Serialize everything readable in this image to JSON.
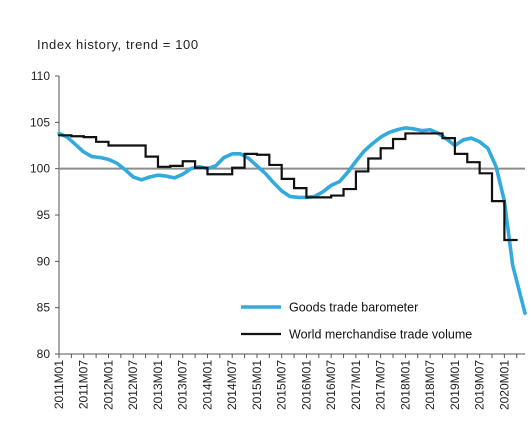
{
  "chart_data": {
    "type": "line",
    "title": "",
    "subtitle": "Index history, trend = 100",
    "xlabel": "",
    "ylabel": "",
    "ylim": [
      80,
      110
    ],
    "yticks": [
      80,
      85,
      90,
      95,
      100,
      105,
      110
    ],
    "reference_line": 100,
    "grid": false,
    "legend_position": "bottom-right",
    "x_start": "2011M01",
    "x_end": "2020M06",
    "x_tick_labels": [
      "2011M01",
      "2011M07",
      "2012M01",
      "2012M07",
      "2013M01",
      "2013M07",
      "2014M01",
      "2014M07",
      "2015M01",
      "2015M07",
      "2016M01",
      "2016M07",
      "2017M01",
      "2017M07",
      "2018M01",
      "2018M07",
      "2019M01",
      "2019M07",
      "2020M01"
    ],
    "series": [
      {
        "name": "Goods trade barometer",
        "color": "#33aadd",
        "style": "line",
        "points": [
          [
            "2011M01",
            103.8
          ],
          [
            "2011M03",
            103.4
          ],
          [
            "2011M05",
            102.6
          ],
          [
            "2011M07",
            101.8
          ],
          [
            "2011M09",
            101.3
          ],
          [
            "2011M11",
            101.2
          ],
          [
            "2012M01",
            101.0
          ],
          [
            "2012M03",
            100.6
          ],
          [
            "2012M05",
            99.9
          ],
          [
            "2012M07",
            99.1
          ],
          [
            "2012M09",
            98.8
          ],
          [
            "2012M11",
            99.1
          ],
          [
            "2013M01",
            99.3
          ],
          [
            "2013M03",
            99.2
          ],
          [
            "2013M05",
            99.0
          ],
          [
            "2013M07",
            99.4
          ],
          [
            "2013M09",
            100.0
          ],
          [
            "2013M11",
            100.2
          ],
          [
            "2014M01",
            100.0
          ],
          [
            "2014M03",
            100.3
          ],
          [
            "2014M05",
            101.2
          ],
          [
            "2014M07",
            101.6
          ],
          [
            "2014M09",
            101.6
          ],
          [
            "2014M11",
            101.1
          ],
          [
            "2015M01",
            100.3
          ],
          [
            "2015M03",
            99.5
          ],
          [
            "2015M05",
            98.5
          ],
          [
            "2015M07",
            97.6
          ],
          [
            "2015M09",
            97.0
          ],
          [
            "2015M11",
            96.9
          ],
          [
            "2016M01",
            96.9
          ],
          [
            "2016M03",
            97.0
          ],
          [
            "2016M05",
            97.5
          ],
          [
            "2016M07",
            98.2
          ],
          [
            "2016M09",
            98.6
          ],
          [
            "2016M11",
            99.6
          ],
          [
            "2017M01",
            100.8
          ],
          [
            "2017M03",
            101.9
          ],
          [
            "2017M05",
            102.7
          ],
          [
            "2017M07",
            103.4
          ],
          [
            "2017M09",
            103.9
          ],
          [
            "2017M11",
            104.2
          ],
          [
            "2018M01",
            104.4
          ],
          [
            "2018M03",
            104.3
          ],
          [
            "2018M05",
            104.1
          ],
          [
            "2018M07",
            104.2
          ],
          [
            "2018M09",
            103.8
          ],
          [
            "2018M11",
            103.2
          ],
          [
            "2019M01",
            102.5
          ],
          [
            "2019M03",
            103.1
          ],
          [
            "2019M05",
            103.3
          ],
          [
            "2019M07",
            102.9
          ],
          [
            "2019M09",
            102.2
          ],
          [
            "2019M11",
            100.2
          ],
          [
            "2020M01",
            96.5
          ],
          [
            "2020M03",
            89.6
          ],
          [
            "2020M06",
            84.4
          ]
        ]
      },
      {
        "name": "World merchandise trade volume",
        "color": "#111111",
        "style": "step",
        "points": [
          [
            "2011M01",
            103.6
          ],
          [
            "2011M04",
            103.6
          ],
          [
            "2011M04",
            103.5
          ],
          [
            "2011M07",
            103.5
          ],
          [
            "2011M07",
            103.4
          ],
          [
            "2011M10",
            103.4
          ],
          [
            "2011M10",
            102.9
          ],
          [
            "2012M01",
            102.9
          ],
          [
            "2012M01",
            102.5
          ],
          [
            "2012M10",
            102.5
          ],
          [
            "2012M10",
            101.3
          ],
          [
            "2013M01",
            101.3
          ],
          [
            "2013M01",
            100.2
          ],
          [
            "2013M04",
            100.2
          ],
          [
            "2013M04",
            100.3
          ],
          [
            "2013M07",
            100.3
          ],
          [
            "2013M07",
            100.8
          ],
          [
            "2013M10",
            100.8
          ],
          [
            "2013M10",
            100.1
          ],
          [
            "2014M01",
            100.1
          ],
          [
            "2014M01",
            99.4
          ],
          [
            "2014M07",
            99.4
          ],
          [
            "2014M07",
            100.1
          ],
          [
            "2014M10",
            100.1
          ],
          [
            "2014M10",
            101.6
          ],
          [
            "2015M01",
            101.6
          ],
          [
            "2015M01",
            101.5
          ],
          [
            "2015M04",
            101.5
          ],
          [
            "2015M04",
            100.4
          ],
          [
            "2015M07",
            100.4
          ],
          [
            "2015M07",
            98.9
          ],
          [
            "2015M10",
            98.9
          ],
          [
            "2015M10",
            97.9
          ],
          [
            "2016M01",
            97.9
          ],
          [
            "2016M01",
            96.9
          ],
          [
            "2016M07",
            96.9
          ],
          [
            "2016M07",
            97.1
          ],
          [
            "2016M10",
            97.1
          ],
          [
            "2016M10",
            97.8
          ],
          [
            "2017M01",
            97.8
          ],
          [
            "2017M01",
            99.7
          ],
          [
            "2017M04",
            99.7
          ],
          [
            "2017M04",
            101.1
          ],
          [
            "2017M07",
            101.1
          ],
          [
            "2017M07",
            102.2
          ],
          [
            "2017M10",
            102.2
          ],
          [
            "2017M10",
            103.2
          ],
          [
            "2018M01",
            103.2
          ],
          [
            "2018M01",
            103.8
          ],
          [
            "2018M10",
            103.8
          ],
          [
            "2018M10",
            103.3
          ],
          [
            "2019M01",
            103.3
          ],
          [
            "2019M01",
            101.6
          ],
          [
            "2019M04",
            101.6
          ],
          [
            "2019M04",
            100.7
          ],
          [
            "2019M07",
            100.7
          ],
          [
            "2019M07",
            99.5
          ],
          [
            "2019M10",
            99.5
          ],
          [
            "2019M10",
            96.5
          ],
          [
            "2020M01",
            96.5
          ],
          [
            "2020M01",
            92.3
          ],
          [
            "2020M04",
            92.3
          ]
        ]
      }
    ]
  }
}
